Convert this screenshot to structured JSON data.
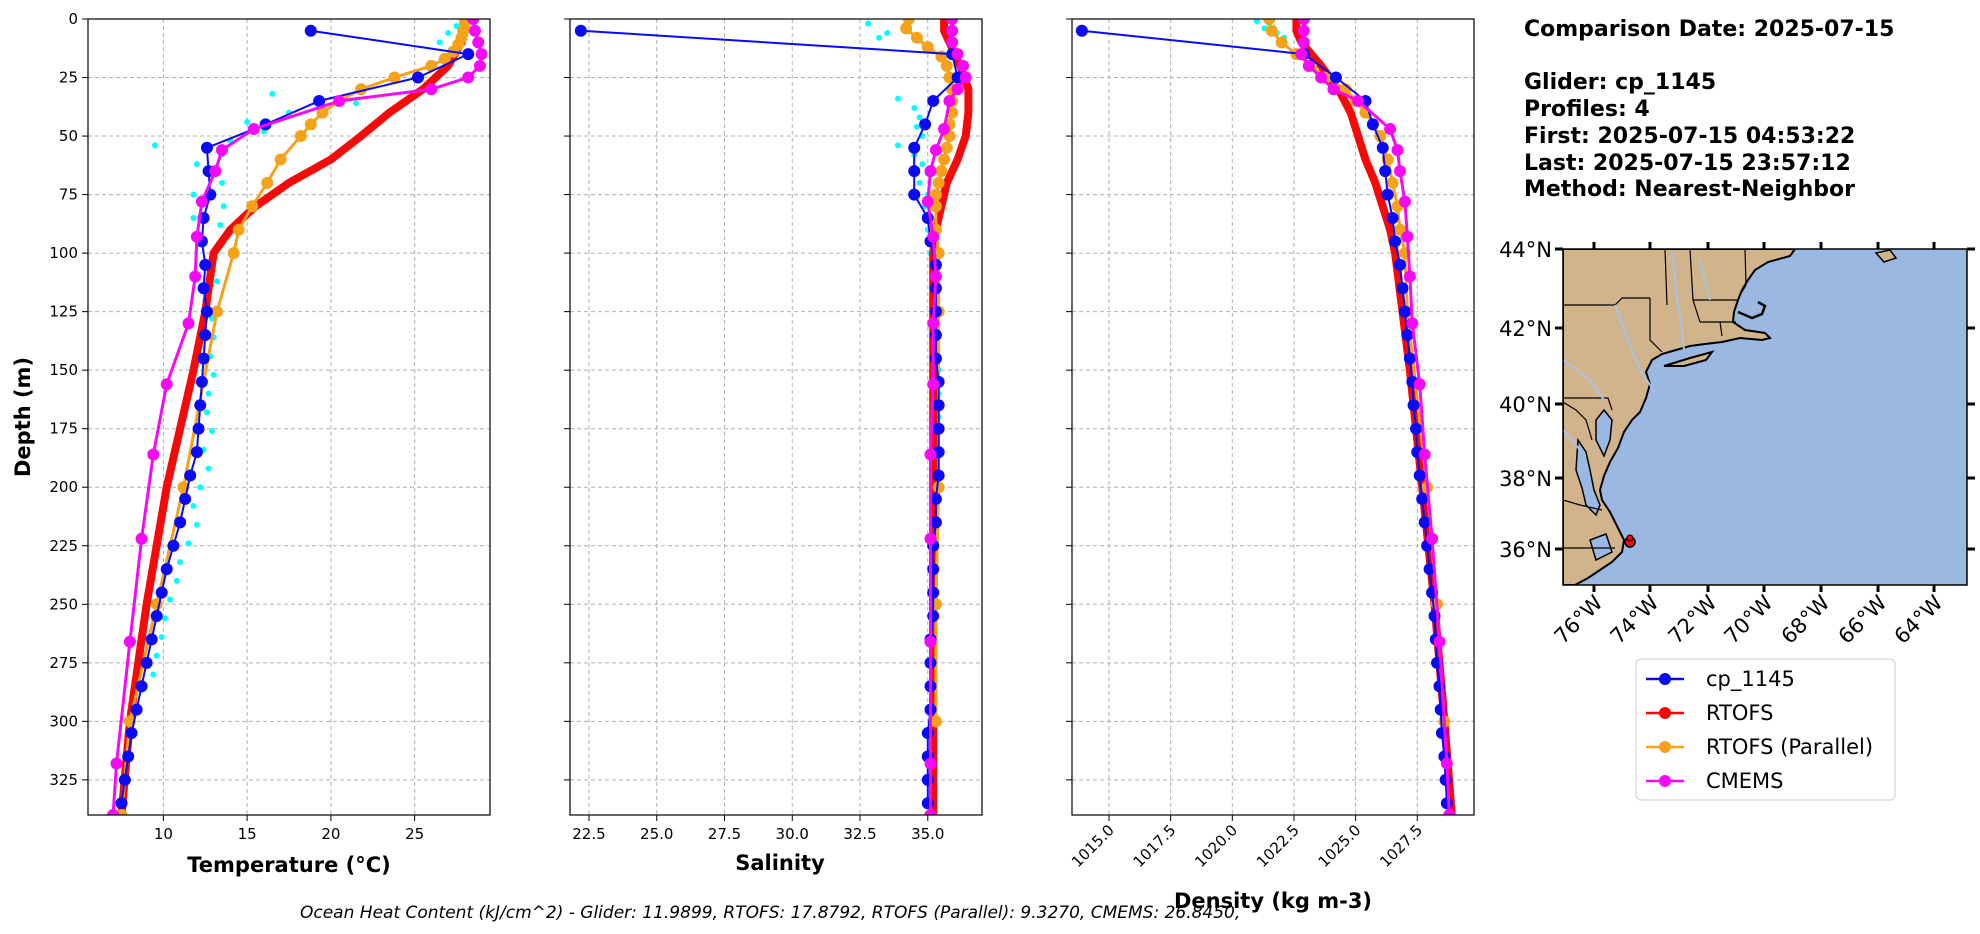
{
  "colors": {
    "glider": "#0a0af5",
    "rtofs": "#f50a0a",
    "rtofs_parallel": "#f5a21b",
    "cmems": "#f50af5",
    "glider_raw": "#00ffff",
    "land": "#d2b48c",
    "ocean": "#9bb8e3",
    "rivers": "#a9c3e6"
  },
  "info": {
    "comparison_date": "Comparison Date: 2025-07-15",
    "glider": "Glider: cp_1145",
    "profiles": "Profiles: 4",
    "first": "First: 2025-07-15 04:53:22",
    "last": "Last: 2025-07-15 23:57:12",
    "method": "Method: Nearest-Neighbor"
  },
  "footer": "Ocean Heat Content (kJ/cm^2) - Glider: 11.9899,  RTOFS: 17.8792,  RTOFS (Parallel): 9.3270,  CMEMS: 26.8450,",
  "legend": [
    "cp_1145",
    "RTOFS",
    "RTOFS (Parallel)",
    "CMEMS"
  ],
  "map": {
    "lat_labels": [
      "44°N",
      "42°N",
      "40°N",
      "38°N",
      "36°N"
    ],
    "lon_labels": [
      "76°W",
      "74°W",
      "72°W",
      "70°W",
      "68°W",
      "66°W",
      "64°W"
    ],
    "glider_marker": "glider-location"
  },
  "chart_data": [
    {
      "type": "line",
      "title": "",
      "xlabel": "Temperature (°C)",
      "ylabel": "Depth (m)",
      "xlim": [
        5.5,
        29.5
      ],
      "ylim": [
        340,
        0
      ],
      "xticks": [
        10,
        15,
        20,
        25
      ],
      "yticks": [
        0,
        25,
        50,
        75,
        100,
        125,
        150,
        175,
        200,
        225,
        250,
        275,
        300,
        325
      ],
      "series": [
        {
          "name": "cp_1145",
          "depth": [
            5,
            15,
            25,
            35,
            45,
            55,
            65,
            75,
            85,
            95,
            105,
            115,
            125,
            135,
            145,
            155,
            165,
            175,
            185,
            195,
            205,
            215,
            225,
            235,
            245,
            255,
            265,
            275,
            285,
            295,
            305,
            315,
            325,
            335
          ],
          "values": [
            18.8,
            28.2,
            25.2,
            19.3,
            16.1,
            12.6,
            12.7,
            12.8,
            12.4,
            12.3,
            12.5,
            12.4,
            12.6,
            12.5,
            12.4,
            12.3,
            12.2,
            12.1,
            12.0,
            11.6,
            11.3,
            11.0,
            10.6,
            10.2,
            9.9,
            9.6,
            9.3,
            9.0,
            8.7,
            8.4,
            8.1,
            7.9,
            7.7,
            7.5
          ]
        },
        {
          "name": "RTOFS",
          "depth": [
            0,
            5,
            10,
            20,
            30,
            40,
            50,
            60,
            70,
            80,
            90,
            100,
            125,
            150,
            200,
            250,
            300,
            340
          ],
          "values": [
            28.0,
            28.0,
            27.8,
            27.0,
            25.5,
            23.5,
            21.8,
            20.0,
            17.5,
            15.5,
            14.0,
            13.0,
            12.5,
            11.8,
            10.2,
            9.0,
            8.0,
            7.5
          ]
        },
        {
          "name": "RTOFS (Parallel)",
          "depth": [
            0,
            2,
            5,
            8,
            11,
            14,
            17,
            20,
            25,
            30,
            35,
            40,
            45,
            50,
            60,
            70,
            80,
            90,
            100,
            125,
            200,
            250,
            300,
            340
          ],
          "values": [
            28.0,
            28.0,
            27.9,
            27.8,
            27.6,
            27.3,
            26.8,
            26.0,
            23.8,
            21.8,
            20.5,
            19.5,
            18.8,
            18.2,
            17.0,
            16.2,
            15.3,
            14.5,
            14.2,
            13.2,
            11.2,
            9.6,
            8.0,
            7.5
          ]
        },
        {
          "name": "CMEMS",
          "depth": [
            0,
            5,
            10,
            15,
            20,
            25,
            30,
            35,
            47,
            56,
            65,
            78,
            93,
            110,
            130,
            156,
            186,
            222,
            266,
            318,
            340
          ],
          "values": [
            28.5,
            28.6,
            28.8,
            29.0,
            28.9,
            28.2,
            26.0,
            20.5,
            15.4,
            13.5,
            13.1,
            12.3,
            12.0,
            11.9,
            11.5,
            10.2,
            9.4,
            8.7,
            8.0,
            7.2,
            7.0
          ]
        },
        {
          "name": "glider_raw",
          "depth": [
            3,
            6,
            10,
            30,
            32,
            36,
            40,
            44,
            48,
            52,
            54,
            58,
            62,
            66,
            70,
            75,
            80,
            85,
            88,
            92,
            96,
            104,
            112,
            120,
            128,
            136,
            144,
            152,
            160,
            168,
            176,
            184,
            192,
            200,
            208,
            216,
            224,
            232,
            240,
            248,
            256,
            264,
            272,
            280
          ],
          "values": [
            27.5,
            27.0,
            26.5,
            22.0,
            16.5,
            21.5,
            17.5,
            15.0,
            16.0,
            14.0,
            9.5,
            13.5,
            12.0,
            12.8,
            13.5,
            11.8,
            13.6,
            11.8,
            13.4,
            12.0,
            13.3,
            13.0,
            13.2,
            12.5,
            12.9,
            13.0,
            12.8,
            13.0,
            12.7,
            12.6,
            12.9,
            12.4,
            12.7,
            12.2,
            11.8,
            12.0,
            11.5,
            11.0,
            10.8,
            10.4,
            10.1,
            9.9,
            9.6,
            9.4
          ]
        }
      ]
    },
    {
      "type": "line",
      "title": "",
      "xlabel": "Salinity",
      "ylabel": "",
      "xlim": [
        21.8,
        37.0
      ],
      "ylim": [
        340,
        0
      ],
      "xticks": [
        22.5,
        25.0,
        27.5,
        30.0,
        32.5,
        35.0
      ],
      "yticks": [
        0,
        25,
        50,
        75,
        100,
        125,
        150,
        175,
        200,
        225,
        250,
        275,
        300,
        325
      ],
      "series": [
        {
          "name": "cp_1145",
          "depth": [
            5,
            15,
            25,
            35,
            45,
            55,
            65,
            75,
            85,
            95,
            105,
            115,
            125,
            135,
            145,
            155,
            165,
            175,
            185,
            195,
            205,
            215,
            225,
            235,
            245,
            255,
            265,
            275,
            285,
            295,
            305,
            315,
            325,
            335
          ],
          "values": [
            22.2,
            35.9,
            36.1,
            35.2,
            34.9,
            34.5,
            34.5,
            34.5,
            35.0,
            35.1,
            35.3,
            35.3,
            35.3,
            35.3,
            35.3,
            35.4,
            35.4,
            35.4,
            35.4,
            35.4,
            35.3,
            35.3,
            35.2,
            35.2,
            35.2,
            35.2,
            35.1,
            35.1,
            35.1,
            35.1,
            35.0,
            35.0,
            35.0,
            35.0
          ]
        },
        {
          "name": "RTOFS",
          "depth": [
            0,
            5,
            10,
            20,
            30,
            40,
            50,
            60,
            70,
            80,
            90,
            100,
            125,
            150,
            200,
            250,
            300,
            340
          ],
          "values": [
            35.6,
            35.6,
            35.8,
            36.2,
            36.5,
            36.5,
            36.4,
            36.1,
            35.7,
            35.5,
            35.3,
            35.2,
            35.2,
            35.2,
            35.2,
            35.2,
            35.2,
            35.2
          ]
        },
        {
          "name": "RTOFS (Parallel)",
          "depth": [
            0,
            4,
            8,
            12,
            16,
            20,
            25,
            30,
            35,
            40,
            45,
            50,
            55,
            60,
            65,
            70,
            75,
            80,
            90,
            100,
            125,
            200,
            250,
            300
          ],
          "values": [
            34.3,
            34.2,
            34.6,
            35.0,
            35.5,
            35.7,
            35.8,
            35.9,
            35.9,
            35.9,
            35.8,
            35.8,
            35.7,
            35.6,
            35.5,
            35.4,
            35.3,
            35.3,
            35.3,
            35.4,
            35.4,
            35.4,
            35.3,
            35.3
          ]
        },
        {
          "name": "CMEMS",
          "depth": [
            0,
            5,
            10,
            15,
            20,
            25,
            30,
            35,
            47,
            56,
            65,
            78,
            93,
            110,
            130,
            156,
            186,
            222,
            266,
            318,
            340
          ],
          "values": [
            35.9,
            35.9,
            35.9,
            36.1,
            36.3,
            36.4,
            36.1,
            35.8,
            35.6,
            35.3,
            35.1,
            35.0,
            35.2,
            35.3,
            35.2,
            35.2,
            35.1,
            35.1,
            35.1,
            35.1,
            35.1
          ]
        },
        {
          "name": "glider_raw",
          "depth": [
            2,
            6,
            8,
            34,
            38,
            42,
            46,
            50,
            54,
            58,
            62,
            66,
            70,
            75,
            80,
            85,
            90,
            95,
            100,
            110,
            120,
            130,
            140,
            150,
            160,
            170
          ],
          "values": [
            32.8,
            33.5,
            33.2,
            33.9,
            34.5,
            34.7,
            34.6,
            34.8,
            33.9,
            34.5,
            34.8,
            35.0,
            34.7,
            35.0,
            34.9,
            35.1,
            35.0,
            35.0,
            35.1,
            35.2,
            35.2,
            35.3,
            35.3,
            35.4,
            35.4,
            35.4
          ]
        }
      ]
    },
    {
      "type": "line",
      "title": "",
      "xlabel": "Density (kg m-3)",
      "ylabel": "",
      "xlim": [
        1013.5,
        1029.8
      ],
      "ylim": [
        340,
        0
      ],
      "xticks": [
        1015.0,
        1017.5,
        1020.0,
        1022.5,
        1025.0,
        1027.5
      ],
      "yticks": [
        0,
        25,
        50,
        75,
        100,
        125,
        150,
        175,
        200,
        225,
        250,
        275,
        300,
        325
      ],
      "series": [
        {
          "name": "cp_1145",
          "depth": [
            5,
            15,
            25,
            35,
            45,
            55,
            65,
            75,
            85,
            95,
            105,
            115,
            125,
            135,
            145,
            155,
            165,
            175,
            185,
            195,
            205,
            215,
            225,
            235,
            245,
            255,
            265,
            275,
            285,
            295,
            305,
            315,
            325,
            335
          ],
          "values": [
            1013.9,
            1022.9,
            1024.2,
            1025.4,
            1025.7,
            1026.1,
            1026.2,
            1026.3,
            1026.5,
            1026.6,
            1026.8,
            1026.9,
            1027.0,
            1027.1,
            1027.2,
            1027.3,
            1027.35,
            1027.45,
            1027.5,
            1027.6,
            1027.7,
            1027.8,
            1027.9,
            1028.0,
            1028.1,
            1028.2,
            1028.25,
            1028.3,
            1028.4,
            1028.45,
            1028.5,
            1028.6,
            1028.65,
            1028.7
          ]
        },
        {
          "name": "RTOFS",
          "depth": [
            0,
            5,
            10,
            20,
            30,
            40,
            50,
            60,
            70,
            80,
            90,
            100,
            125,
            150,
            200,
            250,
            300,
            340
          ],
          "values": [
            1022.6,
            1022.6,
            1022.8,
            1023.6,
            1024.3,
            1024.8,
            1025.1,
            1025.4,
            1025.8,
            1026.1,
            1026.4,
            1026.6,
            1026.9,
            1027.2,
            1027.7,
            1028.2,
            1028.6,
            1028.9
          ]
        },
        {
          "name": "RTOFS (Parallel)",
          "depth": [
            0,
            5,
            10,
            15,
            20,
            25,
            30,
            35,
            40,
            45,
            50,
            60,
            70,
            80,
            90,
            100,
            125,
            200,
            250,
            300,
            340
          ],
          "values": [
            1021.5,
            1021.6,
            1022.0,
            1022.6,
            1023.2,
            1023.8,
            1024.6,
            1025.0,
            1025.4,
            1025.7,
            1026.0,
            1026.3,
            1026.5,
            1026.7,
            1026.8,
            1027.0,
            1027.1,
            1027.9,
            1028.3,
            1028.6,
            1028.8
          ]
        },
        {
          "name": "CMEMS",
          "depth": [
            0,
            5,
            10,
            15,
            20,
            25,
            30,
            35,
            47,
            56,
            65,
            78,
            93,
            110,
            130,
            156,
            186,
            222,
            266,
            318,
            340
          ],
          "values": [
            1022.9,
            1022.9,
            1022.9,
            1022.8,
            1023.1,
            1023.6,
            1024.1,
            1025.1,
            1026.4,
            1026.7,
            1026.8,
            1027.0,
            1027.1,
            1027.2,
            1027.3,
            1027.6,
            1027.8,
            1028.1,
            1028.4,
            1028.7,
            1028.8
          ]
        },
        {
          "name": "glider_raw",
          "depth": [
            1,
            2,
            4,
            6,
            8
          ],
          "values": [
            1021.0,
            1021.5,
            1021.3,
            1021.8,
            1022.1
          ]
        }
      ]
    }
  ]
}
